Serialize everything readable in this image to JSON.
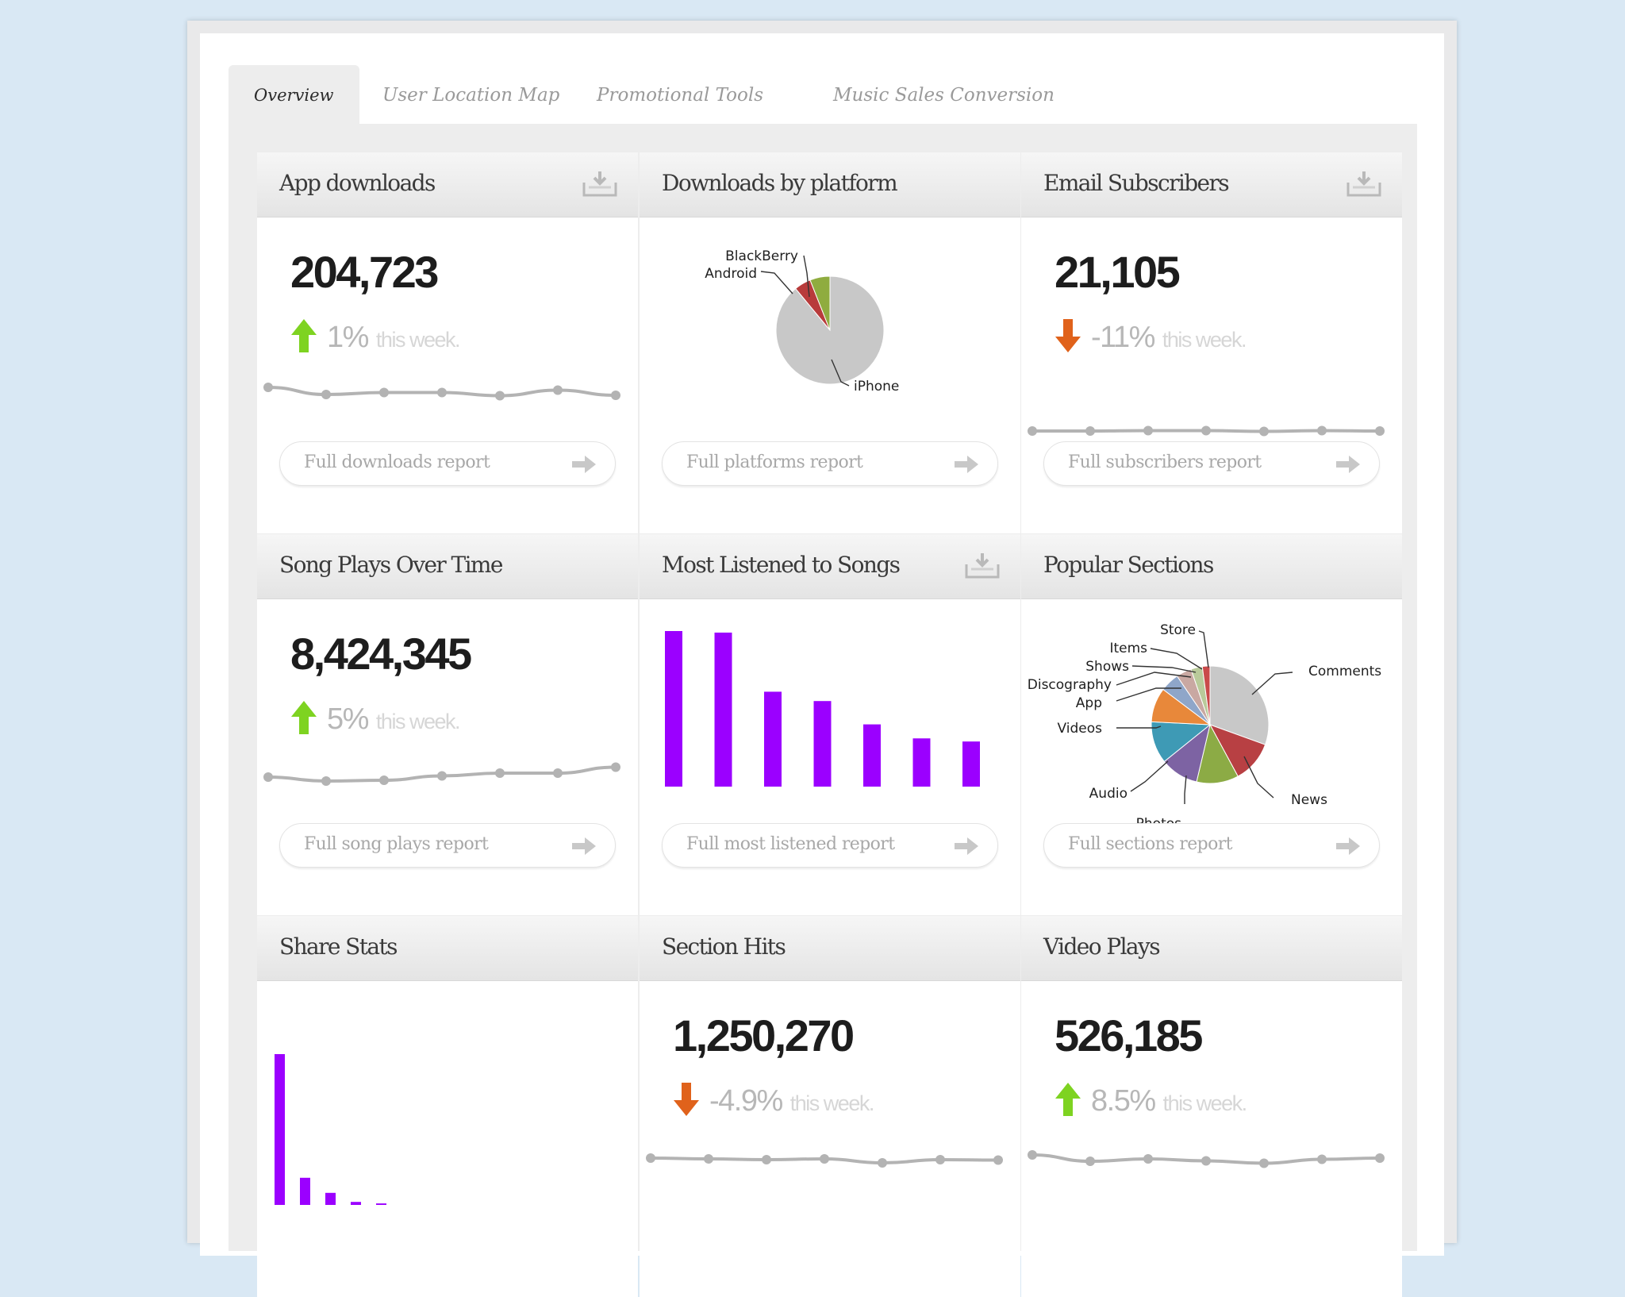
{
  "tabs": [
    "Overview",
    "User Location Map",
    "Promotional Tools",
    "Music Sales Conversion"
  ],
  "colors": {
    "up": "#7ed321",
    "down": "#e0621b",
    "bar": "#9b00ff",
    "spark": "#b3b3b3"
  },
  "panels": {
    "app_downloads": {
      "title": "App downloads",
      "value": "204,723",
      "change": "1%",
      "change_suffix": "this week.",
      "trend": "up",
      "report": "Full downloads report"
    },
    "downloads_by_platform": {
      "title": "Downloads by platform",
      "report": "Full platforms report"
    },
    "email_subscribers": {
      "title": "Email Subscribers",
      "value": "21,105",
      "change": "-11%",
      "change_suffix": "this week.",
      "trend": "down",
      "report": "Full subscribers report"
    },
    "song_plays": {
      "title": "Song Plays Over Time",
      "value": "8,424,345",
      "change": "5%",
      "change_suffix": "this week.",
      "trend": "up",
      "report": "Full song plays report"
    },
    "most_listened": {
      "title": "Most Listened to Songs",
      "report": "Full most listened report"
    },
    "popular_sections": {
      "title": "Popular Sections",
      "report": "Full sections report"
    },
    "share_stats": {
      "title": "Share Stats"
    },
    "section_hits": {
      "title": "Section Hits",
      "value": "1,250,270",
      "change": "-4.9%",
      "change_suffix": "this week.",
      "trend": "down"
    },
    "video_plays": {
      "title": "Video Plays",
      "value": "526,185",
      "change": "8.5%",
      "change_suffix": "this week.",
      "trend": "up"
    }
  },
  "chart_data": [
    {
      "id": "platform_pie",
      "type": "pie",
      "title": "Downloads by platform",
      "labels": [
        "iPhone",
        "Android",
        "BlackBerry"
      ],
      "values": [
        89,
        5,
        6
      ],
      "colors": [
        "#c8c8c8",
        "#b83b3b",
        "#8fac3f"
      ]
    },
    {
      "id": "sections_pie",
      "type": "pie",
      "title": "Popular Sections",
      "labels": [
        "Comments",
        "News",
        "Photos",
        "Audio",
        "Videos",
        "App",
        "Discography",
        "Shows",
        "Items",
        "Store"
      ],
      "values": [
        29,
        11,
        11,
        10,
        11,
        9,
        5,
        4,
        3,
        2
      ],
      "colors": [
        "#c8c8c8",
        "#b84043",
        "#8cab45",
        "#7d63a3",
        "#3e9ab5",
        "#e8883a",
        "#8fa6c9",
        "#c9a8a2",
        "#b9ca9a",
        "#c94a4a"
      ]
    },
    {
      "id": "most_listened_bars",
      "type": "bar",
      "title": "Most Listened to Songs",
      "categories": [
        "1",
        "2",
        "3",
        "4",
        "5",
        "6",
        "7"
      ],
      "values": [
        100,
        99,
        61,
        55,
        40,
        31,
        29
      ],
      "ylim": [
        0,
        100
      ]
    },
    {
      "id": "share_stats_bars",
      "type": "bar",
      "title": "Share Stats",
      "categories": [
        "1",
        "2",
        "3",
        "4",
        "5"
      ],
      "values": [
        100,
        18,
        8,
        2,
        1
      ],
      "ylim": [
        0,
        100
      ]
    },
    {
      "id": "app_downloads_spark",
      "type": "line",
      "values": [
        60,
        42,
        47,
        47,
        39,
        53,
        40
      ]
    },
    {
      "id": "email_subscribers_spark",
      "type": "line",
      "values": [
        50,
        50,
        51,
        51,
        49,
        51,
        50
      ]
    },
    {
      "id": "song_plays_spark",
      "type": "line",
      "values": [
        40,
        30,
        32,
        43,
        50,
        50,
        65
      ]
    },
    {
      "id": "section_hits_spark",
      "type": "line",
      "values": [
        50,
        48,
        46,
        48,
        38,
        46,
        45
      ]
    },
    {
      "id": "video_plays_spark",
      "type": "line",
      "values": [
        58,
        42,
        48,
        43,
        37,
        47,
        50
      ]
    }
  ]
}
